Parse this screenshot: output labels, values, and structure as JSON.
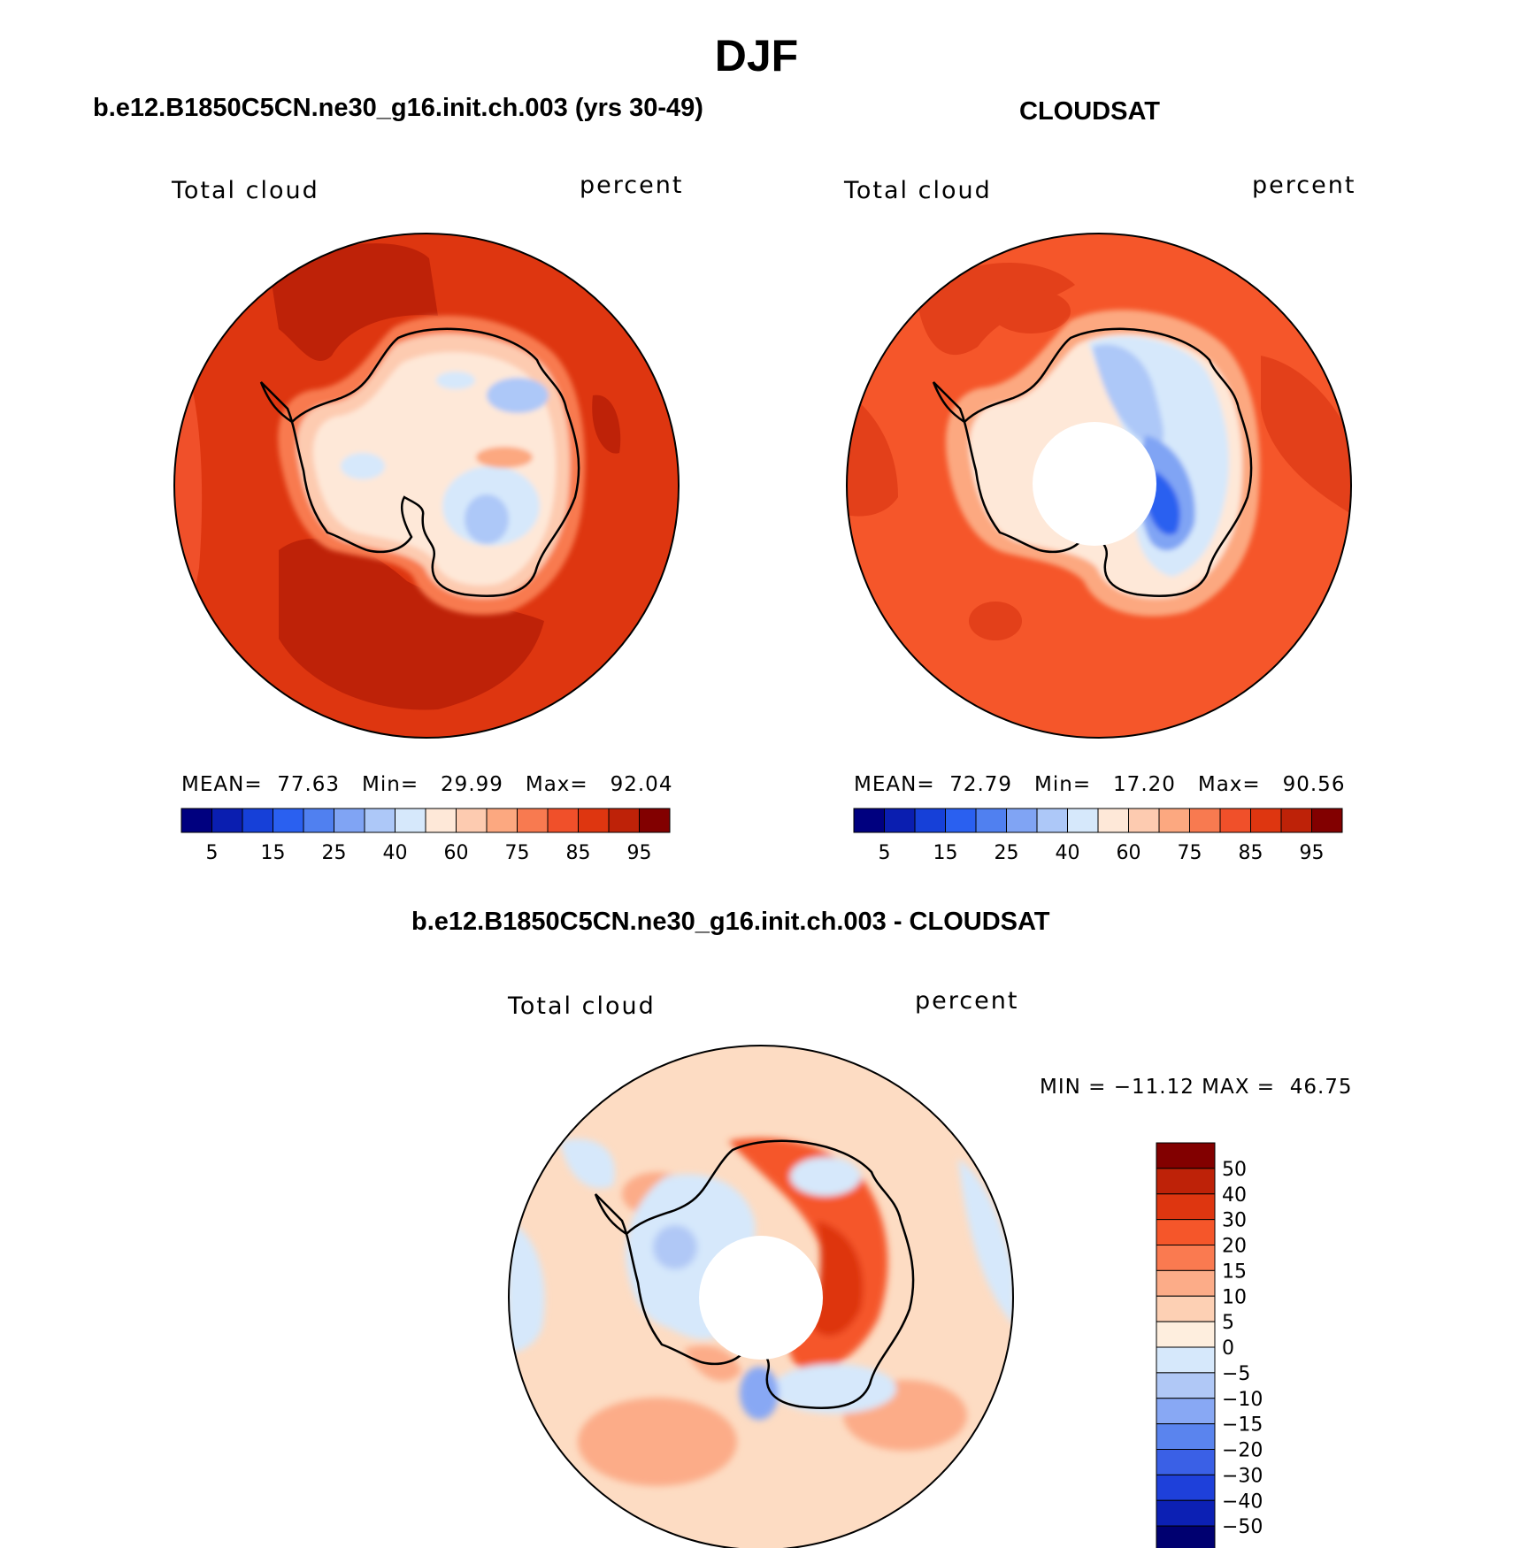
{
  "title": "DJF",
  "panels": [
    {
      "title": "b.e12.B1850C5CN.ne30_g16.init.ch.003 (yrs 30-49)",
      "variable": "Total cloud",
      "units": "percent",
      "stats": {
        "mean_label": "MEAN=",
        "mean": "77.63",
        "min_label": "Min=",
        "min": "29.99",
        "max_label": "Max=",
        "max": "92.04"
      },
      "has_pole_hole": false,
      "map_fill": "#DE3610"
    },
    {
      "title": "CLOUDSAT",
      "variable": "Total cloud",
      "units": "percent",
      "stats": {
        "mean_label": "MEAN=",
        "mean": "72.79",
        "min_label": "Min=",
        "min": "17.20",
        "max_label": "Max=",
        "max": "90.56"
      },
      "has_pole_hole": true,
      "map_fill": "#F5562A"
    },
    {
      "title": "b.e12.B1850C5CN.ne30_g16.init.ch.003 - CLOUDSAT",
      "variable": "Total cloud",
      "units": "percent",
      "minmax_text": "MIN = −11.12 MAX =  46.75",
      "has_pole_hole": true,
      "map_fill": "#FDDCC3"
    }
  ],
  "abs_colorbar": {
    "colors": [
      "#00007F",
      "#0A1EB0",
      "#1640D8",
      "#2A60F0",
      "#5080F0",
      "#80A4F4",
      "#ADC8F8",
      "#D6E8FB",
      "#FEE8D8",
      "#FDCBB0",
      "#FCA880",
      "#F87A50",
      "#F0502A",
      "#DE3610",
      "#BE2208",
      "#820000"
    ],
    "tick_labels": [
      "5",
      "15",
      "25",
      "40",
      "60",
      "75",
      "85",
      "95"
    ]
  },
  "diff_colorbar": {
    "colors": [
      "#820000",
      "#BE2208",
      "#DE3610",
      "#F5562A",
      "#FA7A50",
      "#FCAC88",
      "#FDD0B4",
      "#FEEEDE",
      "#D6E8FB",
      "#B0C8F6",
      "#88A8F4",
      "#5A84EE",
      "#3A60E6",
      "#1E40DA",
      "#0C20B4",
      "#000070"
    ],
    "tick_labels": [
      "50",
      "40",
      "30",
      "20",
      "15",
      "10",
      "5",
      "0",
      "−5",
      "−10",
      "−15",
      "−20",
      "−30",
      "−40",
      "−50"
    ]
  },
  "chart_data": [
    {
      "type": "heatmap",
      "title": "b.e12.B1850C5CN.ne30_g16.init.ch.003 (yrs 30-49)",
      "variable": "Total cloud",
      "units": "percent",
      "mean": 77.63,
      "min": 29.99,
      "max": 92.04,
      "contour_levels": [
        5,
        10,
        15,
        20,
        25,
        30,
        40,
        50,
        60,
        65,
        70,
        75,
        80,
        85,
        90,
        95
      ],
      "projection": "south polar stereographic"
    },
    {
      "type": "heatmap",
      "title": "CLOUDSAT",
      "variable": "Total cloud",
      "units": "percent",
      "mean": 72.79,
      "min": 17.2,
      "max": 90.56,
      "contour_levels": [
        5,
        10,
        15,
        20,
        25,
        30,
        40,
        50,
        60,
        65,
        70,
        75,
        80,
        85,
        90,
        95
      ],
      "projection": "south polar stereographic"
    },
    {
      "type": "heatmap",
      "title": "b.e12.B1850C5CN.ne30_g16.init.ch.003 - CLOUDSAT",
      "variable": "Total cloud",
      "units": "percent",
      "min": -11.12,
      "max": 46.75,
      "contour_levels": [
        -50,
        -40,
        -30,
        -20,
        -15,
        -10,
        -5,
        0,
        5,
        10,
        15,
        20,
        30,
        40,
        50
      ],
      "projection": "south polar stereographic"
    }
  ]
}
